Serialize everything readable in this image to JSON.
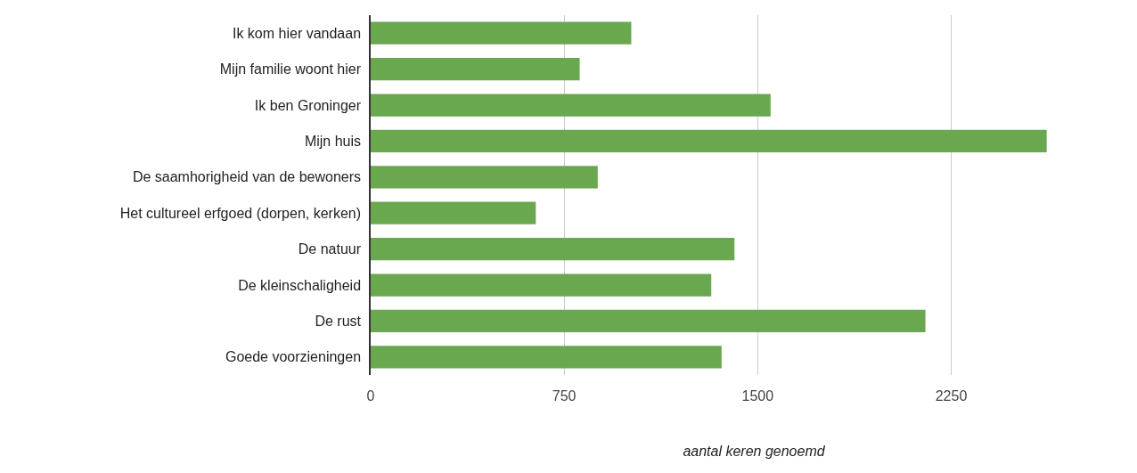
{
  "chart_data": {
    "type": "bar",
    "orientation": "horizontal",
    "xlabel": "aantal keren genoemd",
    "categories": [
      "Ik kom hier vandaan",
      "Mijn familie woont hier",
      "Ik ben Groninger",
      "Mijn huis",
      "De saamhorigheid van de bewoners",
      "Het cultureel erfgoed (dorpen, kerken)",
      "De natuur",
      "De kleinschaligheid",
      "De rust",
      "Goede voorzieningen"
    ],
    "values": [
      1010,
      810,
      1550,
      2620,
      880,
      640,
      1410,
      1320,
      2150,
      1360
    ],
    "color": "#6aa84f",
    "xlim": [
      0,
      2970
    ],
    "xticks": [
      0,
      750,
      1500,
      2250
    ],
    "grid": "x"
  }
}
